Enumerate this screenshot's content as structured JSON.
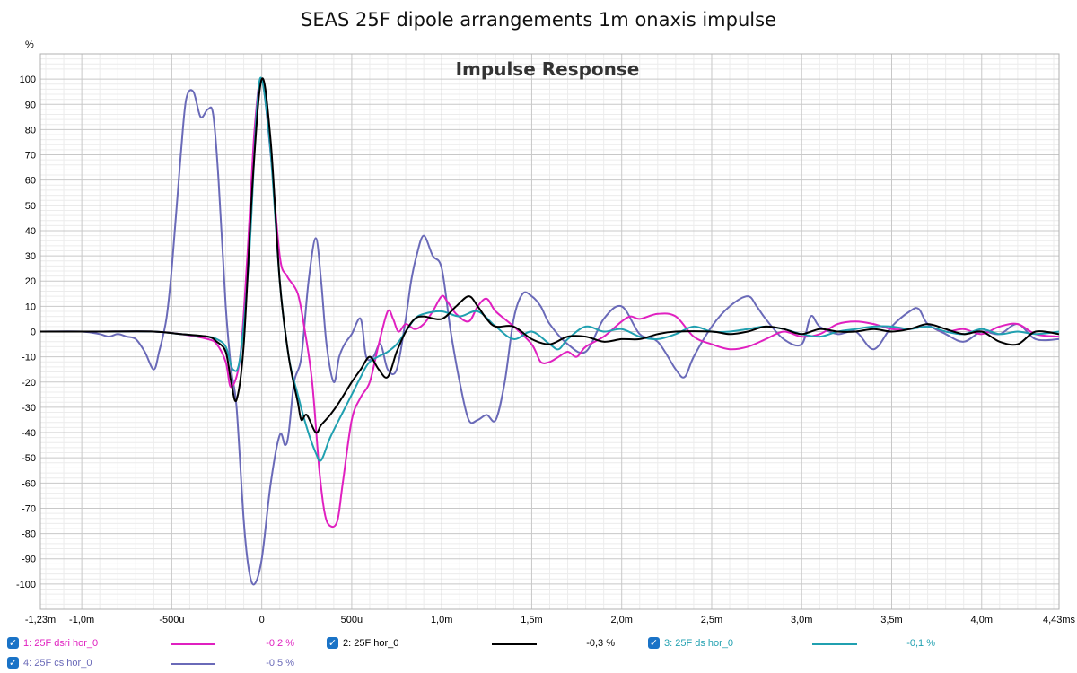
{
  "page_title": "SEAS 25F dipole arrangements 1m onaxis impulse",
  "chart_data": {
    "type": "line",
    "title": "Impulse Response",
    "ylabel": "%",
    "xunit": "ms",
    "ylim": [
      -110,
      110
    ],
    "xlim": [
      -1.23,
      4.43
    ],
    "grid": true,
    "yticks": [
      100,
      90,
      80,
      70,
      60,
      50,
      40,
      30,
      20,
      10,
      0,
      -10,
      -20,
      -30,
      -40,
      -50,
      -60,
      -70,
      -80,
      -90,
      -100
    ],
    "xticks": [
      {
        "x": -1.23,
        "label": "-1,23m"
      },
      {
        "x": -1.0,
        "label": "-1,0m"
      },
      {
        "x": -0.5,
        "label": "-500u"
      },
      {
        "x": 0,
        "label": "0"
      },
      {
        "x": 0.5,
        "label": "500u"
      },
      {
        "x": 1.0,
        "label": "1,0m"
      },
      {
        "x": 1.5,
        "label": "1,5m"
      },
      {
        "x": 2.0,
        "label": "2,0m"
      },
      {
        "x": 2.5,
        "label": "2,5m"
      },
      {
        "x": 3.0,
        "label": "3,0m"
      },
      {
        "x": 3.5,
        "label": "3,5m"
      },
      {
        "x": 4.0,
        "label": "4,0m"
      },
      {
        "x": 4.43,
        "label": "4,43ms"
      }
    ],
    "series": [
      {
        "name": "1: 25F dsri hor_0",
        "value": "-0,2 %",
        "color": "#e020c0",
        "x": [
          -1.23,
          -0.9,
          -0.6,
          -0.45,
          -0.3,
          -0.25,
          -0.2,
          -0.17,
          -0.12,
          -0.08,
          -0.04,
          0,
          0.05,
          0.1,
          0.14,
          0.2,
          0.24,
          0.28,
          0.32,
          0.35,
          0.38,
          0.42,
          0.45,
          0.5,
          0.55,
          0.6,
          0.65,
          0.7,
          0.73,
          0.76,
          0.8,
          0.85,
          0.9,
          0.95,
          1.0,
          1.03,
          1.08,
          1.15,
          1.2,
          1.25,
          1.3,
          1.4,
          1.5,
          1.55,
          1.6,
          1.65,
          1.7,
          1.75,
          1.8,
          1.9,
          2.0,
          2.05,
          2.1,
          2.2,
          2.3,
          2.4,
          2.5,
          2.6,
          2.7,
          2.8,
          2.9,
          3.0,
          3.1,
          3.2,
          3.3,
          3.4,
          3.5,
          3.6,
          3.7,
          3.8,
          3.9,
          4.0,
          4.1,
          4.2,
          4.3,
          4.43
        ],
        "y": [
          0,
          0,
          0,
          -1,
          -3,
          -5,
          -12,
          -22,
          -10,
          30,
          80,
          100,
          70,
          30,
          22,
          15,
          0,
          -20,
          -55,
          -72,
          -77,
          -75,
          -60,
          -35,
          -26,
          -20,
          -5,
          8,
          5,
          0,
          3,
          1,
          3,
          8,
          14,
          12,
          7,
          4,
          10,
          13,
          8,
          2,
          -5,
          -12,
          -12,
          -10,
          -8,
          -10,
          -6,
          -2,
          4,
          6,
          5,
          7,
          6,
          -2,
          -5,
          -7,
          -6,
          -3,
          0,
          -2,
          -1,
          3,
          4,
          3,
          1,
          1,
          2,
          0,
          1,
          -1,
          2,
          3,
          -1,
          -2
        ]
      },
      {
        "name": "2: 25F hor_0",
        "value": "-0,3 %",
        "color": "#000000",
        "x": [
          -1.23,
          -0.9,
          -0.6,
          -0.45,
          -0.3,
          -0.25,
          -0.2,
          -0.17,
          -0.14,
          -0.1,
          -0.05,
          0,
          0.05,
          0.1,
          0.15,
          0.2,
          0.22,
          0.25,
          0.3,
          0.33,
          0.38,
          0.43,
          0.5,
          0.55,
          0.6,
          0.65,
          0.7,
          0.75,
          0.8,
          0.85,
          0.9,
          1.0,
          1.08,
          1.15,
          1.2,
          1.25,
          1.3,
          1.4,
          1.5,
          1.6,
          1.7,
          1.8,
          1.9,
          2.0,
          2.1,
          2.2,
          2.3,
          2.5,
          2.6,
          2.7,
          2.8,
          2.9,
          3.0,
          3.1,
          3.2,
          3.3,
          3.4,
          3.5,
          3.6,
          3.7,
          3.8,
          3.9,
          4.0,
          4.1,
          4.2,
          4.3,
          4.43
        ],
        "y": [
          0,
          0,
          0,
          -1,
          -2,
          -4,
          -8,
          -20,
          -27,
          -5,
          60,
          100,
          75,
          20,
          -10,
          -28,
          -35,
          -33,
          -40,
          -37,
          -33,
          -28,
          -20,
          -15,
          -10,
          -15,
          -18,
          -8,
          0,
          5,
          6,
          5,
          10,
          14,
          10,
          5,
          2,
          2,
          -3,
          -5,
          -2,
          -2,
          -4,
          -3,
          -3,
          -1,
          0,
          0,
          -1,
          0,
          2,
          1,
          -1,
          1,
          0,
          0,
          1,
          0,
          1,
          3,
          1,
          -1,
          0,
          -4,
          -5,
          0,
          -1
        ]
      },
      {
        "name": "3: 25F ds hor_0",
        "value": "-0,1 %",
        "color": "#20a0b0",
        "x": [
          -1.23,
          -0.9,
          -0.6,
          -0.45,
          -0.3,
          -0.25,
          -0.2,
          -0.16,
          -0.12,
          -0.07,
          -0.03,
          0,
          0.05,
          0.1,
          0.15,
          0.2,
          0.25,
          0.3,
          0.33,
          0.38,
          0.45,
          0.5,
          0.55,
          0.6,
          0.7,
          0.75,
          0.8,
          0.85,
          0.9,
          1.0,
          1.1,
          1.2,
          1.3,
          1.4,
          1.5,
          1.6,
          1.65,
          1.7,
          1.8,
          1.9,
          2.0,
          2.1,
          2.2,
          2.3,
          2.4,
          2.5,
          2.6,
          2.7,
          2.8,
          2.9,
          3.0,
          3.1,
          3.2,
          3.3,
          3.4,
          3.5,
          3.6,
          3.7,
          3.8,
          3.9,
          4.0,
          4.1,
          4.2,
          4.3,
          4.43
        ],
        "y": [
          0,
          0,
          0,
          -1,
          -2,
          -3,
          -6,
          -15,
          -10,
          30,
          85,
          100,
          70,
          20,
          -10,
          -25,
          -38,
          -48,
          -51,
          -42,
          -32,
          -25,
          -18,
          -12,
          -8,
          -5,
          0,
          5,
          7,
          8,
          6,
          8,
          2,
          -3,
          0,
          -5,
          -7,
          -3,
          2,
          0,
          1,
          -2,
          -3,
          -1,
          2,
          0,
          0,
          1,
          2,
          1,
          -1,
          -2,
          0,
          1,
          2,
          2,
          1,
          2,
          0,
          -1,
          1,
          -1,
          0,
          -1,
          0
        ]
      },
      {
        "name": "4: 25F cs hor_0",
        "value": "-0,5 %",
        "color": "#6a6ab8",
        "x": [
          -1.23,
          -1.0,
          -0.9,
          -0.85,
          -0.8,
          -0.75,
          -0.7,
          -0.65,
          -0.6,
          -0.57,
          -0.53,
          -0.5,
          -0.45,
          -0.42,
          -0.38,
          -0.34,
          -0.3,
          -0.27,
          -0.24,
          -0.2,
          -0.17,
          -0.14,
          -0.1,
          -0.07,
          -0.04,
          0,
          0.05,
          0.1,
          0.13,
          0.15,
          0.18,
          0.22,
          0.26,
          0.3,
          0.33,
          0.36,
          0.4,
          0.43,
          0.46,
          0.5,
          0.55,
          0.58,
          0.62,
          0.66,
          0.7,
          0.75,
          0.8,
          0.83,
          0.86,
          0.9,
          0.95,
          1.0,
          1.05,
          1.1,
          1.15,
          1.2,
          1.25,
          1.3,
          1.35,
          1.4,
          1.45,
          1.5,
          1.55,
          1.6,
          1.7,
          1.8,
          1.9,
          2.0,
          2.1,
          2.2,
          2.3,
          2.35,
          2.4,
          2.5,
          2.6,
          2.7,
          2.75,
          2.8,
          2.9,
          3.0,
          3.05,
          3.1,
          3.2,
          3.3,
          3.4,
          3.5,
          3.6,
          3.65,
          3.7,
          3.8,
          3.9,
          4.0,
          4.1,
          4.2,
          4.3,
          4.43
        ],
        "y": [
          0,
          0,
          -1,
          -2,
          -1,
          -2,
          -3,
          -8,
          -15,
          -8,
          5,
          25,
          70,
          92,
          95,
          85,
          88,
          86,
          60,
          10,
          -15,
          -30,
          -75,
          -95,
          -100,
          -90,
          -60,
          -41,
          -45,
          -40,
          -20,
          -10,
          20,
          37,
          20,
          -5,
          -20,
          -10,
          -5,
          -1,
          5,
          -10,
          -10,
          -5,
          -15,
          -15,
          5,
          20,
          30,
          38,
          30,
          25,
          0,
          -20,
          -35,
          -35,
          -33,
          -35,
          -20,
          5,
          15,
          14,
          10,
          3,
          -5,
          -8,
          5,
          10,
          -1,
          -4,
          -15,
          -18,
          -10,
          2,
          10,
          14,
          10,
          5,
          -3,
          -5,
          6,
          2,
          -1,
          0,
          -7,
          2,
          8,
          9,
          3,
          -1,
          -4,
          0,
          -1,
          3,
          -3,
          -3
        ]
      }
    ]
  }
}
